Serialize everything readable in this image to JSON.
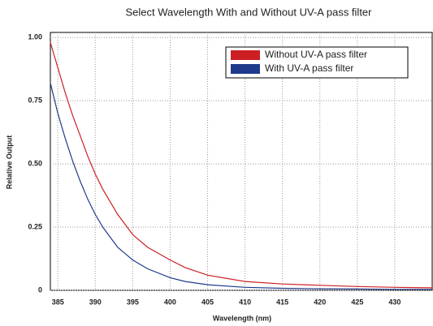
{
  "chart_data": {
    "type": "line",
    "title": "Select Wavelength With and Without UV-A pass filter",
    "x_label": "Wavelength (nm)",
    "y_label": "Relative Output",
    "x": [
      384,
      385,
      386,
      387,
      388,
      389,
      390,
      391,
      392,
      393,
      394,
      395,
      397,
      400,
      402,
      405,
      410,
      415,
      420,
      425,
      430,
      435
    ],
    "series": [
      {
        "name": "Without UV-A pass filter",
        "color": "#cc1f24",
        "values": [
          0.98,
          0.88,
          0.78,
          0.69,
          0.61,
          0.53,
          0.46,
          0.4,
          0.35,
          0.3,
          0.26,
          0.22,
          0.17,
          0.12,
          0.09,
          0.06,
          0.035,
          0.025,
          0.02,
          0.015,
          0.012,
          0.01
        ]
      },
      {
        "name": "With UV-A pass filter",
        "color": "#1f3a8a",
        "values": [
          0.82,
          0.7,
          0.6,
          0.51,
          0.43,
          0.36,
          0.3,
          0.25,
          0.21,
          0.17,
          0.145,
          0.12,
          0.085,
          0.05,
          0.035,
          0.022,
          0.012,
          0.008,
          0.006,
          0.005,
          0.004,
          0.004
        ]
      }
    ],
    "xlim": [
      384,
      435
    ],
    "xticks": [
      385,
      390,
      395,
      400,
      405,
      410,
      415,
      420,
      425,
      430
    ],
    "ylim": [
      0,
      1.02
    ],
    "yticks": [
      0,
      0.25,
      {
        "value": 0.5,
        "label": "0.50"
      },
      0.75,
      {
        "value": 1,
        "label": "1.00"
      }
    ],
    "grid": true,
    "legend": "upper right"
  }
}
